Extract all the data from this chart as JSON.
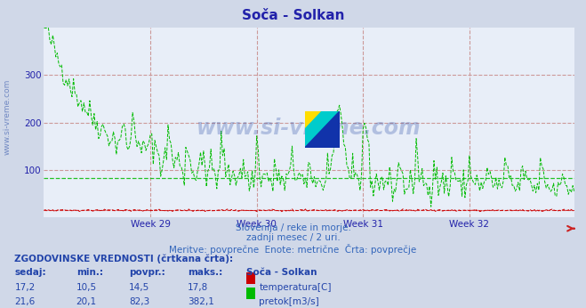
{
  "title": "Soča - Solkan",
  "title_color": "#2222aa",
  "bg_color": "#d0d8e8",
  "plot_bg_color": "#e8eef8",
  "xlabel": "",
  "ylabel": "",
  "ylim": [
    0,
    400
  ],
  "yticks": [
    100,
    200,
    300
  ],
  "week_labels": [
    "Week 29",
    "Week 30",
    "Week 31",
    "Week 32"
  ],
  "n_points": 360,
  "temp_avg": 14.5,
  "flow_avg": 82.3,
  "temp_line_color": "#cc0000",
  "flow_line_color": "#00bb00",
  "watermark_text": "www.si-vreme.com",
  "watermark_color": "#3355aa",
  "watermark_alpha": 0.3,
  "left_text": "www.si-vreme.com",
  "subtitle1": "Slovenija / reke in morje.",
  "subtitle2": "zadnji mesec / 2 uri.",
  "subtitle3": "Meritve: povprečne  Enote: metrične  Črta: povprečje",
  "subtitle_color": "#3366bb",
  "table_header": "ZGODOVINSKE VREDNOSTI (črtkana črta):",
  "table_cols": [
    "sedaj:",
    "min.:",
    "povpr.:",
    "maks.:"
  ],
  "table_color": "#2244aa",
  "row1_vals": [
    "17,2",
    "10,5",
    "14,5",
    "17,8"
  ],
  "row2_vals": [
    "21,6",
    "20,1",
    "82,3",
    "382,1"
  ],
  "row1_label": "temperatura[C]",
  "row2_label": "pretok[m3/s]",
  "row1_swatch": "#cc0000",
  "row2_swatch": "#00bb00",
  "station_label": "Soča - Solkan",
  "hgrid_color": "#cc9999",
  "vgrid_color": "#cc9999"
}
